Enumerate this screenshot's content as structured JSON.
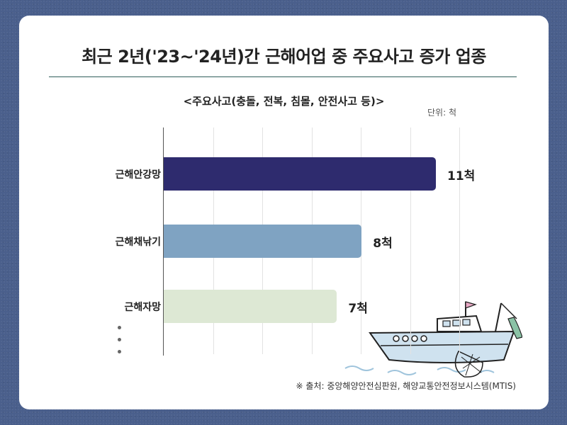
{
  "chart_data": {
    "type": "bar",
    "orientation": "horizontal",
    "title": "최근 2년('23~'24년)간 근해어업 중 주요사고 증가 업종",
    "subtitle": "<주요사고(충돌, 전복, 침몰, 안전사고 등)>",
    "unit": "단위: 척",
    "categories": [
      "근해안강망",
      "근해채낚기",
      "근해자망"
    ],
    "values": [
      11,
      8,
      7
    ],
    "value_labels": [
      "11척",
      "8척",
      "7척"
    ],
    "colors": [
      "#2e2b6e",
      "#7fa3c2",
      "#dde8d4"
    ],
    "xlim": [
      0,
      12
    ],
    "grid": true,
    "more_indicator": "⋮",
    "source": "※ 출처: 중앙해양안전심판원, 해양교통안전정보시스템(MTIS)"
  }
}
